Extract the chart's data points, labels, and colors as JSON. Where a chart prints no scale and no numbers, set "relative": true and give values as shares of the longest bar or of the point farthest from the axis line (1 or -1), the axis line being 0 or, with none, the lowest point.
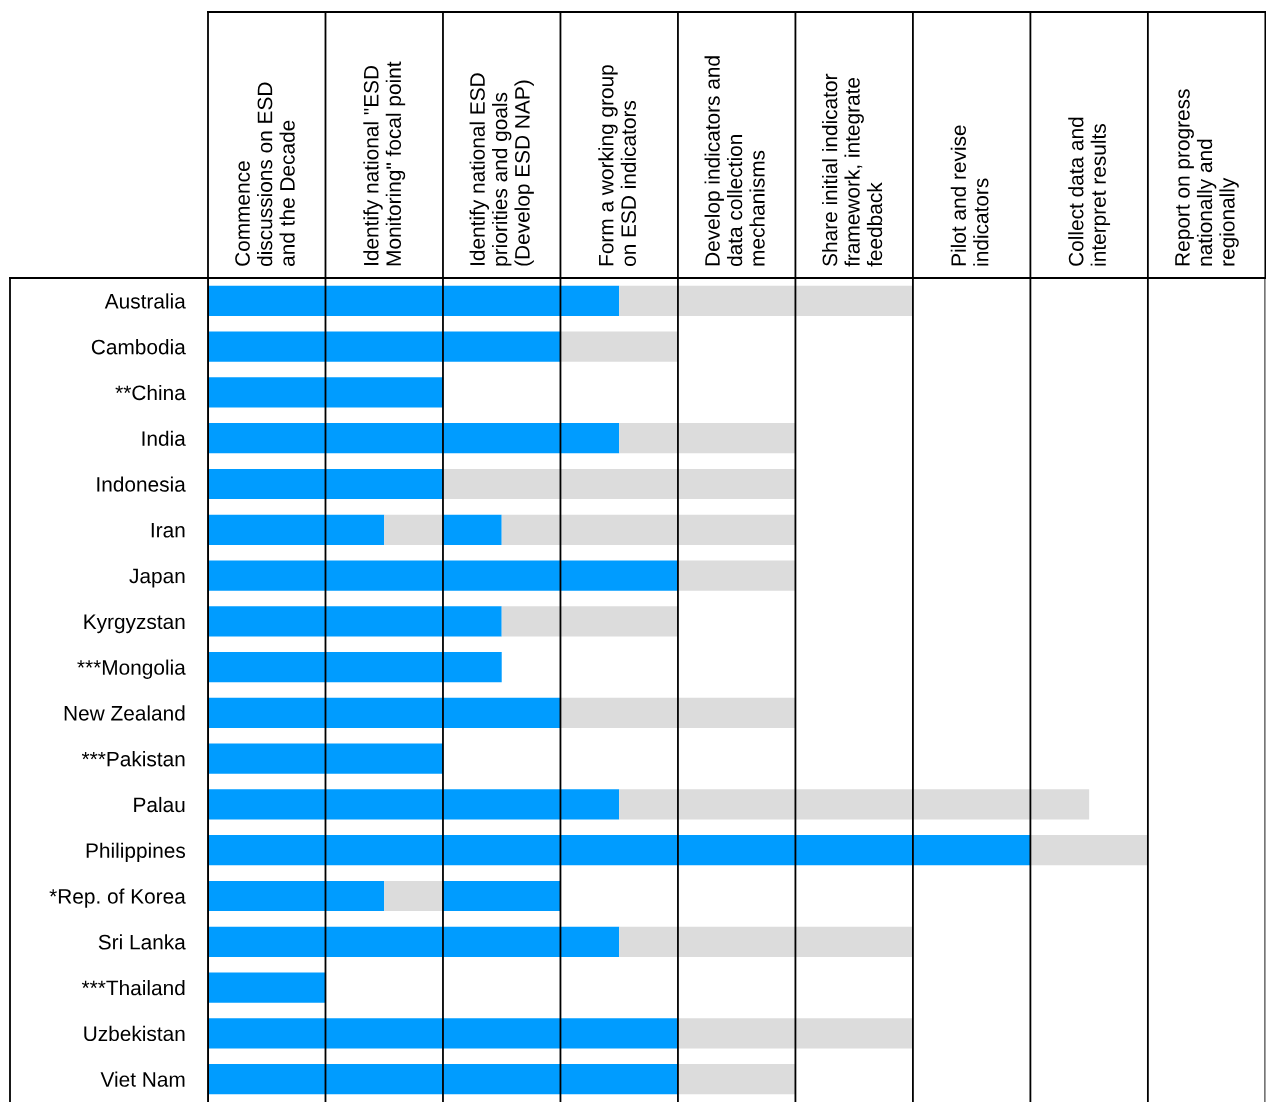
{
  "chart_data": {
    "type": "bar",
    "orientation": "horizontal",
    "stacked": true,
    "relative": true,
    "categories": [
      "Australia",
      "Cambodia",
      "**China",
      "India",
      "Indonesia",
      "Iran",
      "Japan",
      "Kyrgyzstan",
      "***Mongolia",
      "New Zealand",
      "***Pakistan",
      "Palau",
      "Philippines",
      "*Rep. of Korea",
      "Sri Lanka",
      "***Thailand",
      "Uzbekistan",
      "Viet Nam"
    ],
    "series": [
      {
        "color": "#009cff",
        "values": [
          0.4375,
          0.375,
          0.25,
          0.4375,
          0.25,
          0.1875,
          0.5,
          0.3125,
          0.3125,
          0.375,
          0.25,
          0.4375,
          0.875,
          0.1875,
          0.4375,
          0.125,
          0.5,
          0.5
        ]
      },
      {
        "color": "#dcdcdc",
        "values": [
          0.3125,
          0.125,
          null,
          0.1875,
          0.375,
          0.0625,
          0.125,
          0.1875,
          null,
          0.25,
          null,
          0.5,
          0.125,
          0.0625,
          0.3125,
          null,
          0.25,
          0.125
        ]
      },
      {
        "color": "#009cff",
        "values": [
          null,
          null,
          null,
          null,
          null,
          0.0625,
          null,
          null,
          null,
          null,
          null,
          null,
          null,
          0.125,
          null,
          null,
          null,
          null
        ]
      },
      {
        "color": "#dcdcdc",
        "values": [
          null,
          null,
          null,
          null,
          null,
          0.3125,
          null,
          null,
          null,
          null,
          null,
          null,
          null,
          null,
          null,
          null,
          null,
          null
        ]
      }
    ],
    "annotations": [
      "Commence\ndiscussions on ESD\nand the Decade",
      "Identify national \"ESD\nMonitoring\" focal point",
      "Identify national ESD\npriorities and goals\n(Develop ESD NAP)",
      "Form a working group\non ESD indicators",
      "Develop indicators and\ndata collection\nmechanisms",
      "Share initial indicator\nframework, integrate\nfeedback",
      "Pilot and revise\nindicators",
      "Collect data and\ninterpret results",
      "Report on progress\nnationally and\nregionally"
    ],
    "grid": "x",
    "legend": false
  }
}
